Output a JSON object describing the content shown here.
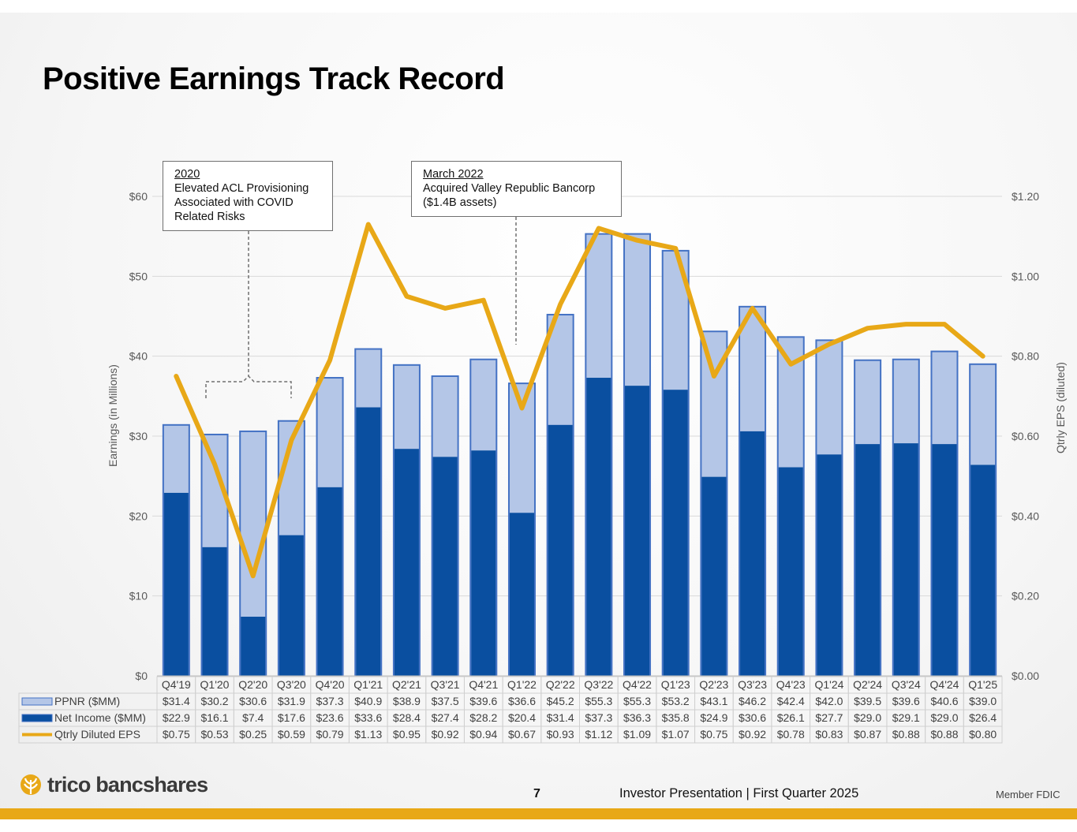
{
  "title": "Positive Earnings Track Record",
  "annotations": [
    {
      "heading": "2020",
      "lines": [
        "Elevated ACL Provisioning",
        "Associated with COVID",
        "Related Risks"
      ]
    },
    {
      "heading": "March 2022",
      "lines": [
        "Acquired Valley Republic Bancorp",
        "($1.4B assets)"
      ]
    }
  ],
  "chart_data": {
    "type": "bar",
    "categories": [
      "Q4'19",
      "Q1'20",
      "Q2'20",
      "Q3'20",
      "Q4'20",
      "Q1'21",
      "Q2'21",
      "Q3'21",
      "Q4'21",
      "Q1'22",
      "Q2'22",
      "Q3'22",
      "Q4'22",
      "Q1'23",
      "Q2'23",
      "Q3'23",
      "Q4'23",
      "Q1'24",
      "Q2'24",
      "Q3'24",
      "Q4'24",
      "Q1'25"
    ],
    "series": [
      {
        "name": "PPNR ($MM)",
        "kind": "bar",
        "color": "#b4c6e7",
        "values": [
          31.4,
          30.2,
          30.6,
          31.9,
          37.3,
          40.9,
          38.9,
          37.5,
          39.6,
          36.6,
          45.2,
          55.3,
          55.3,
          53.2,
          43.1,
          46.2,
          42.4,
          42.0,
          39.5,
          39.6,
          40.6,
          39.0
        ],
        "labels": [
          "$31.4",
          "$30.2",
          "$30.6",
          "$31.9",
          "$37.3",
          "$40.9",
          "$38.9",
          "$37.5",
          "$39.6",
          "$36.6",
          "$45.2",
          "$55.3",
          "$55.3",
          "$53.2",
          "$43.1",
          "$46.2",
          "$42.4",
          "$42.0",
          "$39.5",
          "$39.6",
          "$40.6",
          "$39.0"
        ]
      },
      {
        "name": "Net Income ($MM)",
        "kind": "bar",
        "color": "#0a4fa0",
        "values": [
          22.9,
          16.1,
          7.4,
          17.6,
          23.6,
          33.6,
          28.4,
          27.4,
          28.2,
          20.4,
          31.4,
          37.3,
          36.3,
          35.8,
          24.9,
          30.6,
          26.1,
          27.7,
          29.0,
          29.1,
          29.0,
          26.4
        ],
        "labels": [
          "$22.9",
          "$16.1",
          "$7.4",
          "$17.6",
          "$23.6",
          "$33.6",
          "$28.4",
          "$27.4",
          "$28.2",
          "$20.4",
          "$31.4",
          "$37.3",
          "$36.3",
          "$35.8",
          "$24.9",
          "$30.6",
          "$26.1",
          "$27.7",
          "$29.0",
          "$29.1",
          "$29.0",
          "$26.4"
        ]
      },
      {
        "name": "Qtrly Diluted EPS",
        "kind": "line",
        "axis": "right",
        "color": "#e8a817",
        "values": [
          0.75,
          0.53,
          0.25,
          0.59,
          0.79,
          1.13,
          0.95,
          0.92,
          0.94,
          0.67,
          0.93,
          1.12,
          1.09,
          1.07,
          0.75,
          0.92,
          0.78,
          0.83,
          0.87,
          0.88,
          0.88,
          0.8
        ],
        "labels": [
          "$0.75",
          "$0.53",
          "$0.25",
          "$0.59",
          "$0.79",
          "$1.13",
          "$0.95",
          "$0.92",
          "$0.94",
          "$0.67",
          "$0.93",
          "$1.12",
          "$1.09",
          "$1.07",
          "$0.75",
          "$0.92",
          "$0.78",
          "$0.83",
          "$0.87",
          "$0.88",
          "$0.88",
          "$0.80"
        ]
      }
    ],
    "ylabel": "Earnings (in Millions)",
    "y2label": "Qtrly EPS (diluted)",
    "ylim": [
      0,
      60
    ],
    "y2lim": [
      0,
      1.2
    ],
    "yticks": [
      "$0",
      "$10",
      "$20",
      "$30",
      "$40",
      "$50",
      "$60"
    ],
    "y2ticks": [
      "$0.00",
      "$0.20",
      "$0.40",
      "$0.60",
      "$0.80",
      "$1.00",
      "$1.20"
    ],
    "grid": true,
    "legend": "data-table"
  },
  "footer": {
    "brand": "trico bancshares",
    "page": "7",
    "text": "Investor Presentation | First Quarter 2025",
    "fdic": "Member FDIC"
  }
}
